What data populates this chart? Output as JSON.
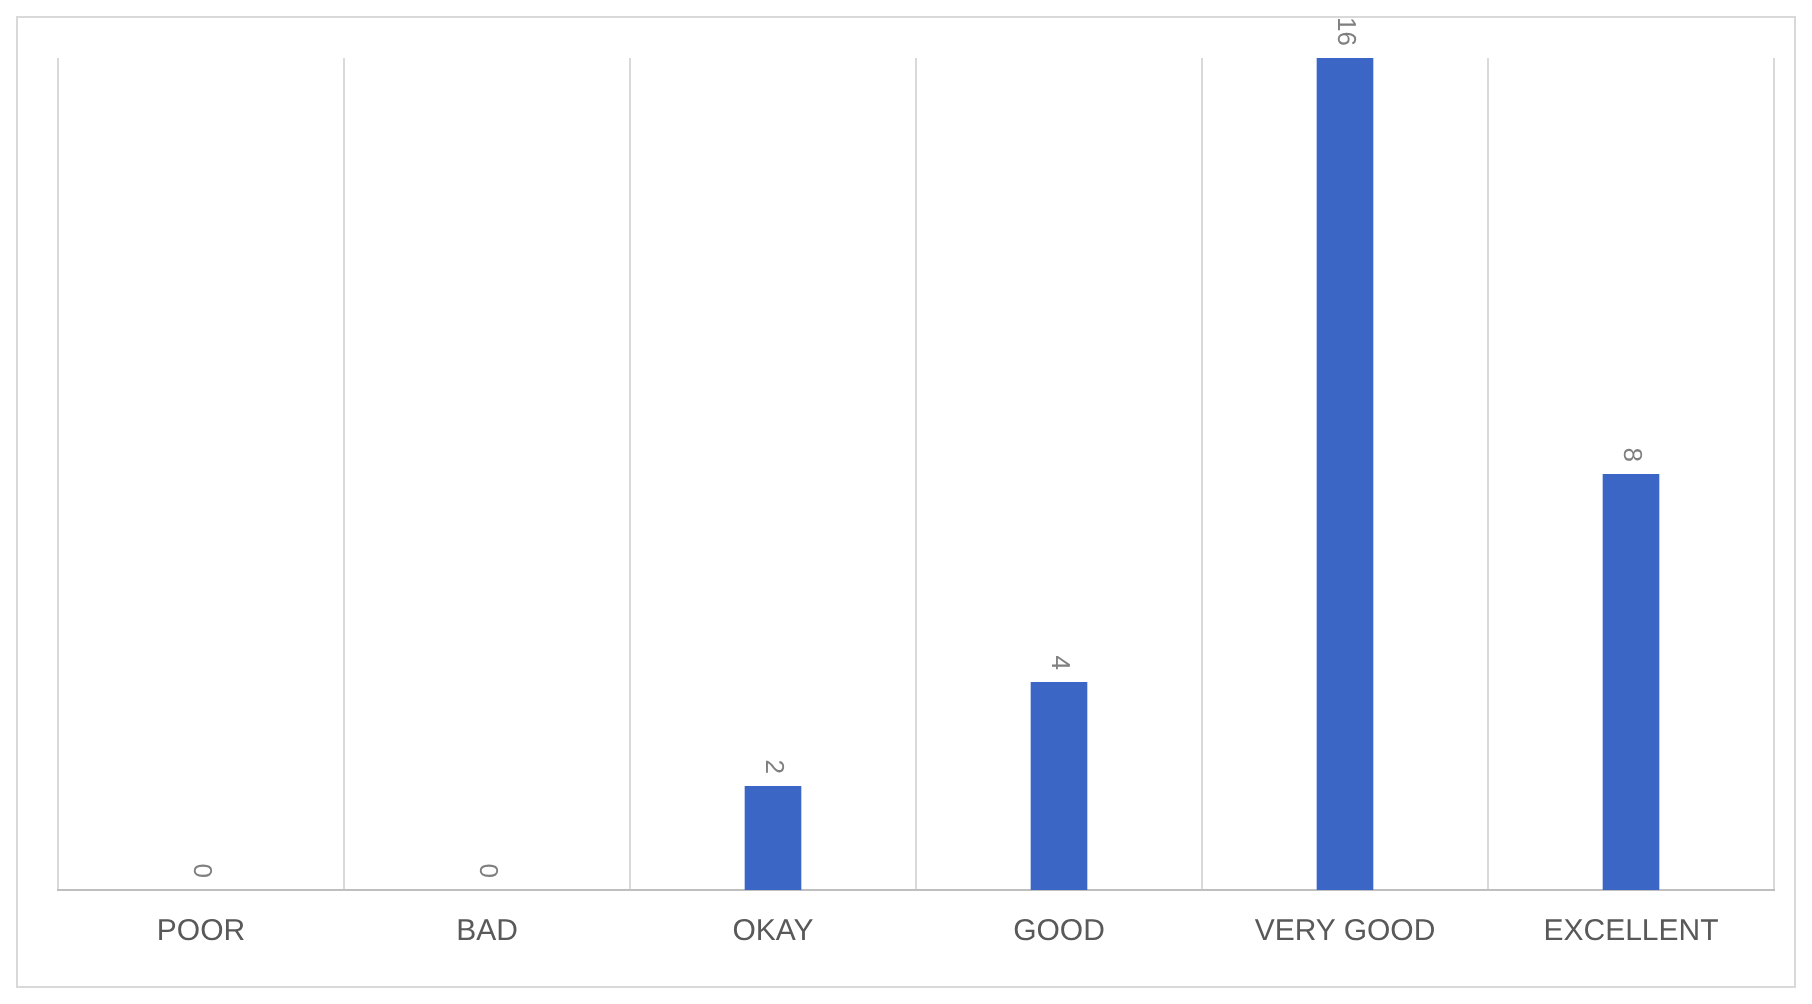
{
  "chart_data": {
    "type": "bar",
    "categories": [
      "POOR",
      "BAD",
      "OKAY",
      "GOOD",
      "VERY GOOD",
      "EXCELLENT"
    ],
    "values": [
      0,
      0,
      2,
      4,
      16,
      8
    ],
    "color": "#3b66c5",
    "data_labels": true,
    "grid": "x",
    "legend": false
  }
}
